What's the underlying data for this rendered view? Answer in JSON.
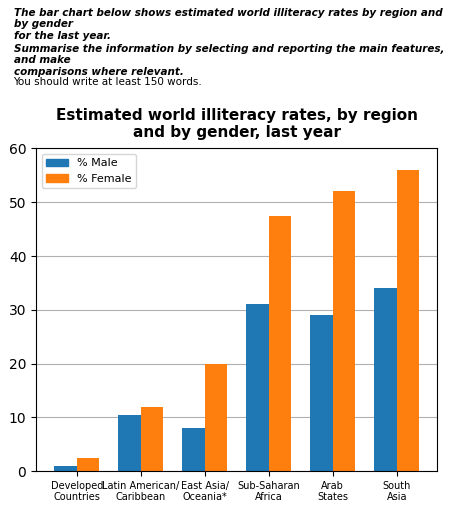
{
  "chart_data": {
    "type": "bar",
    "title": "Estimated world illiteracy rates, by region\nand by gender, last year",
    "annotations": [
      "The bar chart below shows estimated world illiteracy rates by region and by gender\nfor the last year.",
      "Summarise the information by selecting and reporting the main features, and make\ncomparisons where relevant.",
      "You should write at least 150 words."
    ],
    "categories": [
      "Developed\nCountries",
      "Latin American/\nCaribbean",
      "East Asia/\nOceania*",
      "Sub-Saharan\nAfrica",
      "Arab\nStates",
      "South\nAsia"
    ],
    "series": [
      {
        "name": "% Male",
        "values": [
          1,
          10.5,
          8,
          31,
          29,
          34
        ]
      },
      {
        "name": "% Female",
        "values": [
          2.5,
          12,
          20,
          47.5,
          52,
          56
        ]
      }
    ],
    "ylim": [
      0,
      60
    ],
    "yticks": [
      0,
      10,
      20,
      30,
      40,
      50,
      60
    ],
    "grid": true,
    "legend": "upper left"
  }
}
